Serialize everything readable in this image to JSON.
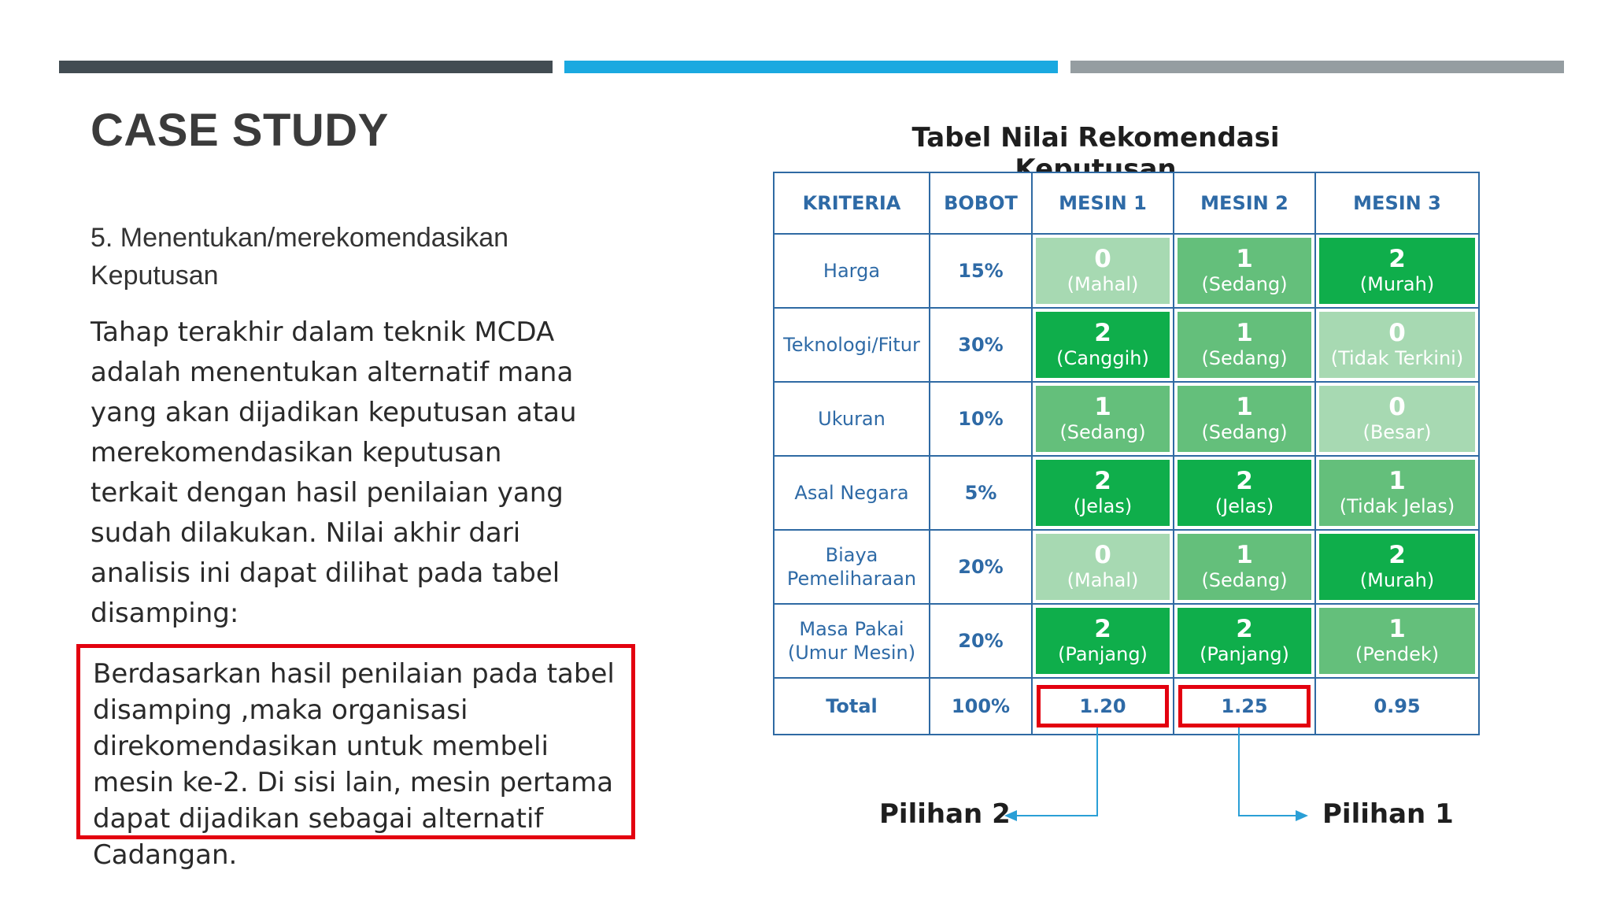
{
  "slide": {
    "title": "CASE STUDY",
    "subtitle": "5. Menentukan/merekomendasikan Keputusan",
    "body": "Tahap terakhir dalam teknik MCDA adalah menentukan alternatif mana yang akan dijadikan keputusan atau merekomendasikan keputusan terkait dengan hasil penilaian yang sudah dilakukan. Nilai akhir dari analisis ini dapat dilihat pada tabel disamping:",
    "conclusion": "Berdasarkan hasil penilaian pada tabel disamping ,maka organisasi direkomendasikan untuk membeli mesin ke-2. Di sisi lain, mesin pertama dapat dijadikan sebagai alternatif Cadangan.",
    "accent_colors": {
      "bar1": "#424c52",
      "bar2": "#1aa9e0",
      "bar3": "#959da1",
      "highlight": "#e3000f"
    }
  },
  "table": {
    "title": "Tabel Nilai Rekomendasi Keputusan",
    "headers": [
      "KRITERIA",
      "BOBOT",
      "MESIN 1",
      "MESIN 2",
      "MESIN 3"
    ],
    "rows": [
      {
        "criteria": "Harga",
        "weight": "15%",
        "scores": [
          {
            "value": "0",
            "label": "(Mahal)"
          },
          {
            "value": "1",
            "label": "(Sedang)"
          },
          {
            "value": "2",
            "label": "(Murah)"
          }
        ]
      },
      {
        "criteria": "Teknologi/Fitur",
        "weight": "30%",
        "scores": [
          {
            "value": "2",
            "label": "(Canggih)"
          },
          {
            "value": "1",
            "label": "(Sedang)"
          },
          {
            "value": "0",
            "label": "(Tidak Terkini)"
          }
        ]
      },
      {
        "criteria": "Ukuran",
        "weight": "10%",
        "scores": [
          {
            "value": "1",
            "label": "(Sedang)"
          },
          {
            "value": "1",
            "label": "(Sedang)"
          },
          {
            "value": "0",
            "label": "(Besar)"
          }
        ]
      },
      {
        "criteria": "Asal Negara",
        "weight": "5%",
        "scores": [
          {
            "value": "2",
            "label": "(Jelas)"
          },
          {
            "value": "2",
            "label": "(Jelas)"
          },
          {
            "value": "1",
            "label": "(Tidak Jelas)"
          }
        ]
      },
      {
        "criteria_lines": [
          "Biaya",
          "Pemeliharaan"
        ],
        "weight": "20%",
        "scores": [
          {
            "value": "0",
            "label": "(Mahal)"
          },
          {
            "value": "1",
            "label": "(Sedang)"
          },
          {
            "value": "2",
            "label": "(Murah)"
          }
        ]
      },
      {
        "criteria_lines": [
          "Masa Pakai",
          "(Umur Mesin)"
        ],
        "weight": "20%",
        "scores": [
          {
            "value": "2",
            "label": "(Panjang)"
          },
          {
            "value": "2",
            "label": "(Panjang)"
          },
          {
            "value": "1",
            "label": "(Pendek)"
          }
        ]
      }
    ],
    "total": {
      "label": "Total",
      "weight": "100%",
      "values": [
        "1.20",
        "1.25",
        "0.95"
      ]
    },
    "score_colors": {
      "0": "#a7d9b2",
      "1": "#64bf7b",
      "2": "#0fae4b"
    }
  },
  "callouts": {
    "mesin1": "Pilihan 2",
    "mesin2": "Pilihan 1",
    "arrow_color": "#2a9fd6"
  }
}
